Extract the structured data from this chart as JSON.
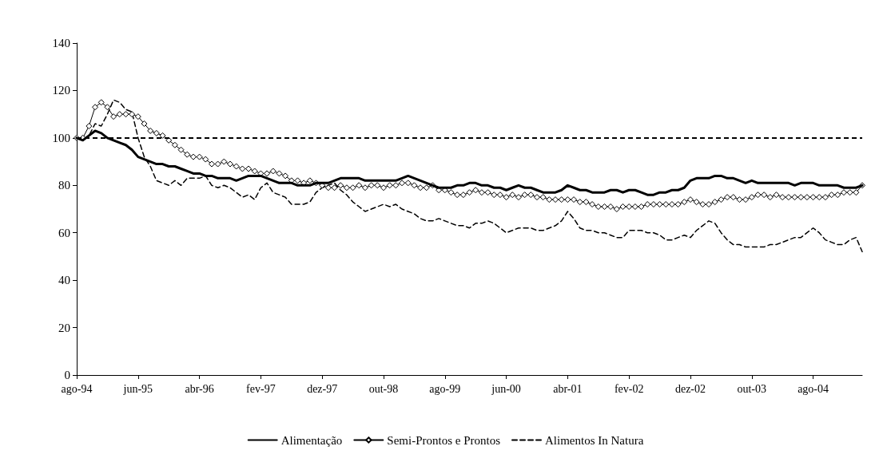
{
  "chart_data": {
    "type": "line",
    "categories": [
      "ago-94",
      null,
      null,
      null,
      null,
      null,
      null,
      null,
      null,
      null,
      "jun-95",
      null,
      null,
      null,
      null,
      null,
      null,
      null,
      null,
      null,
      "abr-96",
      null,
      null,
      null,
      null,
      null,
      null,
      null,
      null,
      null,
      "fev-97",
      null,
      null,
      null,
      null,
      null,
      null,
      null,
      null,
      null,
      "dez-97",
      null,
      null,
      null,
      null,
      null,
      null,
      null,
      null,
      null,
      "out-98",
      null,
      null,
      null,
      null,
      null,
      null,
      null,
      null,
      null,
      "ago-99",
      null,
      null,
      null,
      null,
      null,
      null,
      null,
      null,
      null,
      "jun-00",
      null,
      null,
      null,
      null,
      null,
      null,
      null,
      null,
      null,
      "abr-01",
      null,
      null,
      null,
      null,
      null,
      null,
      null,
      null,
      null,
      "fev-02",
      null,
      null,
      null,
      null,
      null,
      null,
      null,
      null,
      null,
      "dez-02",
      null,
      null,
      null,
      null,
      null,
      null,
      null,
      null,
      null,
      "out-03",
      null,
      null,
      null,
      null,
      null,
      null,
      null,
      null,
      null,
      "ago-04",
      null,
      null,
      null,
      null,
      null,
      null,
      null,
      null
    ],
    "series": [
      {
        "name": "Alimentação",
        "color": "#000000",
        "marker": "none",
        "line_style": "solid",
        "values": [
          100,
          99,
          101,
          103,
          102,
          100,
          99,
          98,
          97,
          95,
          92,
          91,
          90,
          89,
          89,
          88,
          88,
          87,
          86,
          85,
          85,
          84,
          84,
          83,
          83,
          83,
          82,
          83,
          84,
          84,
          84,
          83,
          82,
          81,
          81,
          81,
          80,
          80,
          80,
          81,
          81,
          81,
          82,
          83,
          83,
          83,
          83,
          82,
          82,
          82,
          82,
          82,
          82,
          83,
          84,
          83,
          82,
          81,
          80,
          79,
          79,
          79,
          80,
          80,
          81,
          81,
          80,
          80,
          79,
          79,
          78,
          79,
          80,
          79,
          79,
          78,
          77,
          77,
          77,
          78,
          80,
          79,
          78,
          78,
          77,
          77,
          77,
          78,
          78,
          77,
          78,
          78,
          77,
          76,
          76,
          77,
          77,
          78,
          78,
          79,
          82,
          83,
          83,
          83,
          84,
          84,
          83,
          83,
          82,
          81,
          82,
          81,
          81,
          81,
          81,
          81,
          81,
          80,
          81,
          81,
          81,
          80,
          80,
          80,
          80,
          79,
          79,
          79,
          80
        ]
      },
      {
        "name": "Semi-Prontos e Prontos",
        "color": "#000000",
        "marker": "diamond",
        "line_style": "solid",
        "values": [
          100,
          100,
          105,
          113,
          115,
          113,
          109,
          110,
          110,
          110,
          109,
          106,
          103,
          102,
          101,
          99,
          97,
          95,
          93,
          92,
          92,
          91,
          89,
          89,
          90,
          89,
          88,
          87,
          87,
          86,
          85,
          85,
          86,
          85,
          84,
          82,
          82,
          81,
          82,
          81,
          80,
          79,
          79,
          80,
          79,
          79,
          80,
          79,
          80,
          80,
          79,
          80,
          80,
          81,
          81,
          80,
          79,
          79,
          80,
          78,
          78,
          77,
          76,
          76,
          77,
          78,
          77,
          77,
          76,
          76,
          75,
          76,
          75,
          76,
          76,
          75,
          75,
          74,
          74,
          74,
          74,
          74,
          73,
          73,
          72,
          71,
          71,
          71,
          70,
          71,
          71,
          71,
          71,
          72,
          72,
          72,
          72,
          72,
          72,
          73,
          74,
          73,
          72,
          72,
          73,
          74,
          75,
          75,
          74,
          74,
          75,
          76,
          76,
          75,
          76,
          75,
          75,
          75,
          75,
          75,
          75,
          75,
          75,
          76,
          76,
          77,
          77,
          77,
          80
        ]
      },
      {
        "name": "Alimentos In Natura",
        "color": "#000000",
        "marker": "none",
        "line_style": "dashed",
        "values": [
          100,
          99,
          101,
          106,
          105,
          110,
          116,
          115,
          112,
          111,
          100,
          92,
          88,
          82,
          81,
          80,
          82,
          80,
          83,
          83,
          83,
          84,
          80,
          79,
          80,
          79,
          77,
          75,
          76,
          74,
          79,
          81,
          77,
          76,
          75,
          72,
          72,
          72,
          73,
          77,
          79,
          80,
          81,
          78,
          76,
          73,
          71,
          69,
          70,
          71,
          72,
          71,
          72,
          70,
          69,
          68,
          66,
          65,
          65,
          66,
          65,
          64,
          63,
          63,
          62,
          64,
          64,
          65,
          64,
          62,
          60,
          61,
          62,
          62,
          62,
          61,
          61,
          62,
          63,
          65,
          69,
          66,
          62,
          61,
          61,
          60,
          60,
          59,
          58,
          58,
          61,
          61,
          61,
          60,
          60,
          59,
          57,
          57,
          58,
          59,
          58,
          61,
          63,
          65,
          64,
          60,
          57,
          55,
          55,
          54,
          54,
          54,
          54,
          55,
          55,
          56,
          57,
          58,
          58,
          60,
          62,
          60,
          57,
          56,
          55,
          55,
          57,
          58,
          52
        ]
      }
    ],
    "ylim": [
      0,
      140
    ],
    "yticks": [
      0,
      20,
      40,
      60,
      80,
      100,
      120,
      140
    ],
    "ref_lines": [
      {
        "axis": "y",
        "value": 100,
        "label": null,
        "color": "#000000",
        "line_style": "dashed"
      }
    ],
    "grid": false,
    "legend": "bottom"
  }
}
